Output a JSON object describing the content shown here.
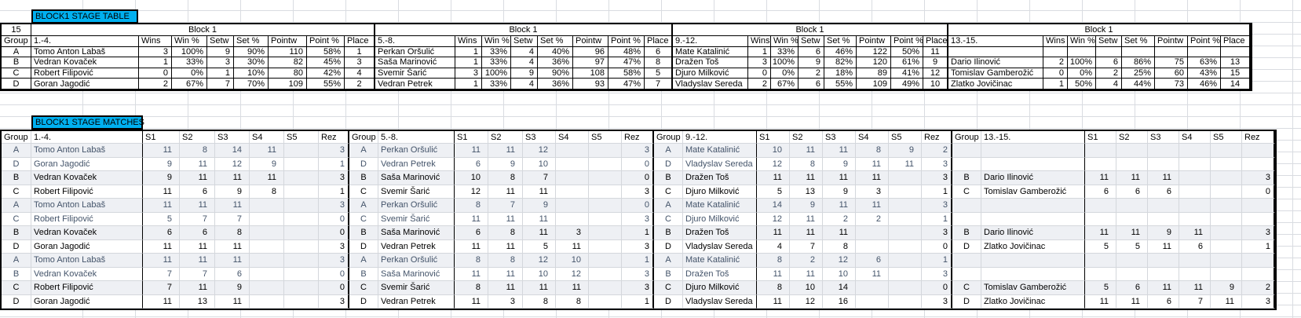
{
  "colors": {
    "label_bg": "#00B0F0",
    "pair_blue_text": "#44546A",
    "zebra_row_bg": "#eef0f4",
    "grid_line": "#d4d7dc",
    "border": "#000000"
  },
  "stage_table": {
    "label": "BLOCK1 STAGE TABLE",
    "row_number": "15",
    "group_header": "Group",
    "block_title": "Block 1",
    "stat_headers": [
      "Wins",
      "Win %",
      "Setw",
      "Set %",
      "Pointw",
      "Point %",
      "Place"
    ],
    "blocks": [
      {
        "range": "1.-4.",
        "rows": [
          {
            "group": "A",
            "name": "Tomo Anton Labaš",
            "stats": [
              "3",
              "100%",
              "9",
              "90%",
              "110",
              "58%",
              "1"
            ]
          },
          {
            "group": "B",
            "name": "Vedran Kovaček",
            "stats": [
              "1",
              "33%",
              "3",
              "30%",
              "82",
              "45%",
              "3"
            ]
          },
          {
            "group": "C",
            "name": "Robert Filipović",
            "stats": [
              "0",
              "0%",
              "1",
              "10%",
              "80",
              "42%",
              "4"
            ]
          },
          {
            "group": "D",
            "name": "Goran Jagodić",
            "stats": [
              "2",
              "67%",
              "7",
              "70%",
              "109",
              "55%",
              "2"
            ]
          }
        ]
      },
      {
        "range": "5.-8.",
        "rows": [
          {
            "name": "Perkan Oršulić",
            "stats": [
              "1",
              "33%",
              "4",
              "40%",
              "96",
              "48%",
              "6"
            ]
          },
          {
            "name": "Saša Marinović",
            "stats": [
              "1",
              "33%",
              "4",
              "36%",
              "97",
              "47%",
              "8"
            ]
          },
          {
            "name": "Svemir Šarić",
            "stats": [
              "3",
              "100%",
              "9",
              "90%",
              "108",
              "58%",
              "5"
            ]
          },
          {
            "name": "Vedran Petrek",
            "stats": [
              "1",
              "33%",
              "4",
              "36%",
              "93",
              "47%",
              "7"
            ]
          }
        ]
      },
      {
        "range": "9.-12.",
        "rows": [
          {
            "name": "Mate Katalinić",
            "stats": [
              "1",
              "33%",
              "6",
              "46%",
              "122",
              "50%",
              "11"
            ]
          },
          {
            "name": "Dražen Toš",
            "stats": [
              "3",
              "100%",
              "9",
              "82%",
              "120",
              "61%",
              "9"
            ]
          },
          {
            "name": "Djuro Milković",
            "stats": [
              "0",
              "0%",
              "2",
              "18%",
              "89",
              "41%",
              "12"
            ]
          },
          {
            "name": "Vladyslav Sereda",
            "stats": [
              "2",
              "67%",
              "6",
              "55%",
              "109",
              "49%",
              "10"
            ]
          }
        ]
      },
      {
        "range": "13.-15.",
        "rows": [
          {
            "name": "",
            "stats": [
              "",
              "",
              "",
              "",
              "",
              "",
              ""
            ]
          },
          {
            "name": "Dario Ilinović",
            "stats": [
              "2",
              "100%",
              "6",
              "86%",
              "75",
              "63%",
              "13"
            ]
          },
          {
            "name": "Tomislav Gamberožić",
            "stats": [
              "0",
              "0%",
              "2",
              "25%",
              "60",
              "43%",
              "15"
            ]
          },
          {
            "name": "Zlatko Jovičinac",
            "stats": [
              "1",
              "50%",
              "4",
              "44%",
              "73",
              "46%",
              "14"
            ]
          }
        ]
      }
    ]
  },
  "matches_table": {
    "label": "BLOCK1 STAGE MATCHES",
    "group_header": "Group",
    "set_headers": [
      "S1",
      "S2",
      "S3",
      "S4",
      "S5"
    ],
    "result_header": "Rez",
    "blocks": [
      {
        "range": "1.-4.",
        "rows": [
          {
            "group": "A",
            "name": "Tomo Anton Labaš",
            "sets": [
              "11",
              "8",
              "14",
              "11",
              ""
            ],
            "rez": "3"
          },
          {
            "group": "D",
            "name": "Goran Jagodić",
            "sets": [
              "9",
              "11",
              "12",
              "9",
              ""
            ],
            "rez": "1"
          },
          {
            "group": "B",
            "name": "Vedran Kovaček",
            "sets": [
              "9",
              "11",
              "11",
              "11",
              ""
            ],
            "rez": "3"
          },
          {
            "group": "C",
            "name": "Robert Filipović",
            "sets": [
              "11",
              "6",
              "9",
              "8",
              ""
            ],
            "rez": "1"
          },
          {
            "group": "A",
            "name": "Tomo Anton Labaš",
            "sets": [
              "11",
              "11",
              "11",
              "",
              ""
            ],
            "rez": "3"
          },
          {
            "group": "C",
            "name": "Robert Filipović",
            "sets": [
              "5",
              "7",
              "7",
              "",
              ""
            ],
            "rez": "0"
          },
          {
            "group": "B",
            "name": "Vedran Kovaček",
            "sets": [
              "6",
              "6",
              "8",
              "",
              ""
            ],
            "rez": "0"
          },
          {
            "group": "D",
            "name": "Goran Jagodić",
            "sets": [
              "11",
              "11",
              "11",
              "",
              ""
            ],
            "rez": "3"
          },
          {
            "group": "A",
            "name": "Tomo Anton Labaš",
            "sets": [
              "11",
              "11",
              "11",
              "",
              ""
            ],
            "rez": "3"
          },
          {
            "group": "B",
            "name": "Vedran Kovaček",
            "sets": [
              "7",
              "7",
              "6",
              "",
              ""
            ],
            "rez": "0"
          },
          {
            "group": "C",
            "name": "Robert Filipović",
            "sets": [
              "7",
              "11",
              "9",
              "",
              ""
            ],
            "rez": "0"
          },
          {
            "group": "D",
            "name": "Goran Jagodić",
            "sets": [
              "11",
              "13",
              "11",
              "",
              ""
            ],
            "rez": "3"
          }
        ]
      },
      {
        "range": "5.-8.",
        "rows": [
          {
            "group": "A",
            "name": "Perkan Oršulić",
            "sets": [
              "11",
              "11",
              "12",
              "",
              ""
            ],
            "rez": "3"
          },
          {
            "group": "D",
            "name": "Vedran Petrek",
            "sets": [
              "6",
              "9",
              "10",
              "",
              ""
            ],
            "rez": "0"
          },
          {
            "group": "B",
            "name": "Saša Marinović",
            "sets": [
              "10",
              "8",
              "7",
              "",
              ""
            ],
            "rez": "0"
          },
          {
            "group": "C",
            "name": "Svemir Šarić",
            "sets": [
              "12",
              "11",
              "11",
              "",
              ""
            ],
            "rez": "3"
          },
          {
            "group": "A",
            "name": "Perkan Oršulić",
            "sets": [
              "8",
              "7",
              "9",
              "",
              ""
            ],
            "rez": "0"
          },
          {
            "group": "C",
            "name": "Svemir Šarić",
            "sets": [
              "11",
              "11",
              "11",
              "",
              ""
            ],
            "rez": "3"
          },
          {
            "group": "B",
            "name": "Saša Marinović",
            "sets": [
              "6",
              "8",
              "11",
              "3",
              ""
            ],
            "rez": "1"
          },
          {
            "group": "D",
            "name": "Vedran Petrek",
            "sets": [
              "11",
              "11",
              "5",
              "11",
              ""
            ],
            "rez": "3"
          },
          {
            "group": "A",
            "name": "Perkan Oršulić",
            "sets": [
              "8",
              "8",
              "12",
              "10",
              ""
            ],
            "rez": "1"
          },
          {
            "group": "B",
            "name": "Saša Marinović",
            "sets": [
              "11",
              "11",
              "10",
              "12",
              ""
            ],
            "rez": "3"
          },
          {
            "group": "C",
            "name": "Svemir Šarić",
            "sets": [
              "8",
              "11",
              "11",
              "11",
              ""
            ],
            "rez": "3"
          },
          {
            "group": "D",
            "name": "Vedran Petrek",
            "sets": [
              "11",
              "3",
              "8",
              "8",
              ""
            ],
            "rez": "1"
          }
        ]
      },
      {
        "range": "9.-12.",
        "rows": [
          {
            "group": "A",
            "name": "Mate Katalinić",
            "sets": [
              "10",
              "11",
              "11",
              "8",
              "9"
            ],
            "rez": "2"
          },
          {
            "group": "D",
            "name": "Vladyslav Sereda",
            "sets": [
              "12",
              "8",
              "9",
              "11",
              "11"
            ],
            "rez": "3"
          },
          {
            "group": "B",
            "name": "Dražen Toš",
            "sets": [
              "11",
              "11",
              "11",
              "11",
              ""
            ],
            "rez": "3"
          },
          {
            "group": "C",
            "name": "Djuro Milković",
            "sets": [
              "5",
              "13",
              "9",
              "3",
              ""
            ],
            "rez": "1"
          },
          {
            "group": "A",
            "name": "Mate Katalinić",
            "sets": [
              "14",
              "9",
              "11",
              "11",
              ""
            ],
            "rez": "3"
          },
          {
            "group": "C",
            "name": "Djuro Milković",
            "sets": [
              "12",
              "11",
              "2",
              "2",
              ""
            ],
            "rez": "1"
          },
          {
            "group": "B",
            "name": "Dražen Toš",
            "sets": [
              "11",
              "11",
              "11",
              "",
              ""
            ],
            "rez": "3"
          },
          {
            "group": "D",
            "name": "Vladyslav Sereda",
            "sets": [
              "4",
              "7",
              "8",
              "",
              ""
            ],
            "rez": "0"
          },
          {
            "group": "A",
            "name": "Mate Katalinić",
            "sets": [
              "8",
              "2",
              "12",
              "6",
              ""
            ],
            "rez": "1"
          },
          {
            "group": "B",
            "name": "Dražen Toš",
            "sets": [
              "11",
              "11",
              "10",
              "11",
              ""
            ],
            "rez": "3"
          },
          {
            "group": "C",
            "name": "Djuro Milković",
            "sets": [
              "8",
              "10",
              "14",
              "",
              ""
            ],
            "rez": "0"
          },
          {
            "group": "D",
            "name": "Vladyslav Sereda",
            "sets": [
              "11",
              "12",
              "16",
              "",
              ""
            ],
            "rez": "3"
          }
        ]
      },
      {
        "range": "13.-15.",
        "rows": [
          {
            "group": "",
            "name": "",
            "sets": [
              "",
              "",
              "",
              "",
              ""
            ],
            "rez": ""
          },
          {
            "group": "",
            "name": "",
            "sets": [
              "",
              "",
              "",
              "",
              ""
            ],
            "rez": ""
          },
          {
            "group": "B",
            "name": "Dario Ilinović",
            "sets": [
              "11",
              "11",
              "11",
              "",
              ""
            ],
            "rez": "3"
          },
          {
            "group": "C",
            "name": "Tomislav Gamberožić",
            "sets": [
              "6",
              "6",
              "6",
              "",
              ""
            ],
            "rez": "0"
          },
          {
            "group": "",
            "name": "",
            "sets": [
              "",
              "",
              "",
              "",
              ""
            ],
            "rez": ""
          },
          {
            "group": "",
            "name": "",
            "sets": [
              "",
              "",
              "",
              "",
              ""
            ],
            "rez": ""
          },
          {
            "group": "B",
            "name": "Dario Ilinović",
            "sets": [
              "11",
              "11",
              "9",
              "11",
              ""
            ],
            "rez": "3"
          },
          {
            "group": "D",
            "name": "Zlatko Jovičinac",
            "sets": [
              "5",
              "5",
              "11",
              "6",
              ""
            ],
            "rez": "1"
          },
          {
            "group": "",
            "name": "",
            "sets": [
              "",
              "",
              "",
              "",
              ""
            ],
            "rez": ""
          },
          {
            "group": "",
            "name": "",
            "sets": [
              "",
              "",
              "",
              "",
              ""
            ],
            "rez": ""
          },
          {
            "group": "C",
            "name": "Tomislav Gamberožić",
            "sets": [
              "5",
              "6",
              "11",
              "11",
              "9"
            ],
            "rez": "2"
          },
          {
            "group": "D",
            "name": "Zlatko Jovičinac",
            "sets": [
              "11",
              "11",
              "6",
              "7",
              "11"
            ],
            "rez": "3"
          }
        ]
      }
    ]
  }
}
